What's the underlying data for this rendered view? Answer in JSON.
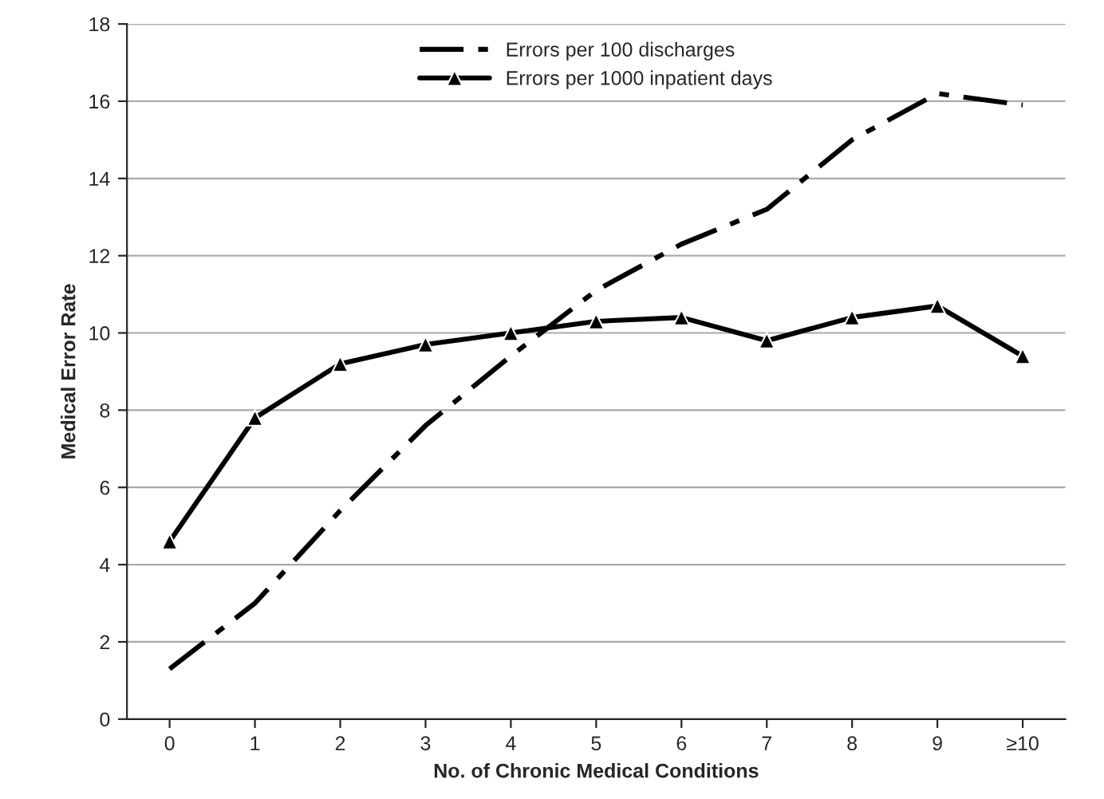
{
  "chart_data": {
    "type": "line",
    "xlabel": "No. of Chronic Medical Conditions",
    "ylabel": "Medical Error Rate",
    "categories": [
      "0",
      "1",
      "2",
      "3",
      "4",
      "5",
      "6",
      "7",
      "8",
      "9",
      "≥10"
    ],
    "series": [
      {
        "name": "Errors per 100 discharges",
        "color": "#000000",
        "line_style": "dashed",
        "marker": "none",
        "values": [
          1.3,
          3.0,
          5.4,
          7.6,
          9.4,
          11.1,
          12.3,
          13.2,
          15.0,
          16.2,
          15.9
        ]
      },
      {
        "name": "Errors per 1000 inpatient days",
        "color": "#000000",
        "line_style": "solid",
        "marker": "triangle",
        "values": [
          4.6,
          7.8,
          9.2,
          9.7,
          10.0,
          10.3,
          10.4,
          9.8,
          10.4,
          10.7,
          9.4
        ]
      }
    ],
    "ylim": [
      0,
      18
    ],
    "yticks": [
      0,
      2,
      4,
      6,
      8,
      10,
      12,
      14,
      16,
      18
    ],
    "grid": "y",
    "legend": "top"
  }
}
